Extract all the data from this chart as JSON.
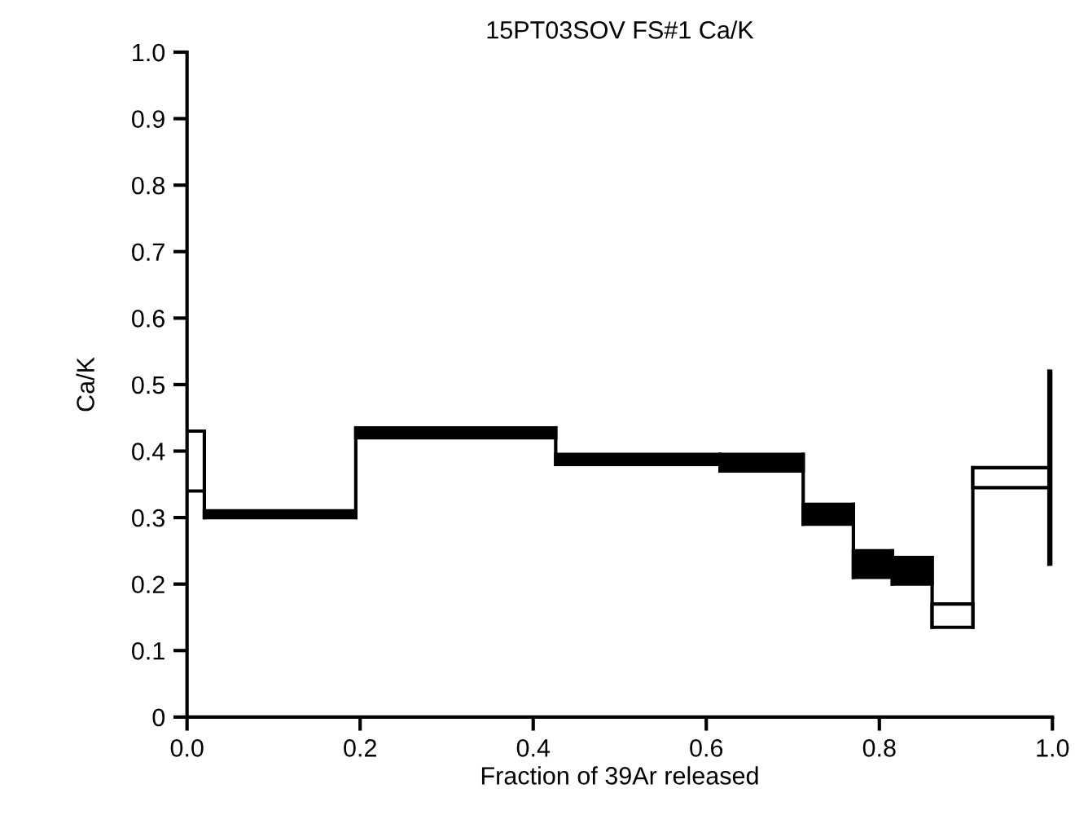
{
  "chart_data": {
    "type": "histogram",
    "title": "15PT03SOV FS#1 Ca/K",
    "xlabel": "Fraction of 39Ar released",
    "ylabel": "Ca/K",
    "bins": [
      0,
      0.02,
      0.195,
      0.426,
      0.616,
      0.712,
      0.77,
      0.815,
      0.861,
      0.908,
      0.996,
      1.0
    ],
    "base": [
      0.34,
      0.3,
      0.42,
      0.38,
      0.37,
      0.29,
      0.21,
      0.2,
      0.135,
      0.345,
      0.23
    ],
    "values": [
      0.09,
      0.01,
      0.015,
      0.015,
      0.025,
      0.03,
      0.04,
      0.04,
      0.035,
      0.03,
      0.29
    ],
    "colors": [
      "#ffffff",
      "#000000",
      "#000000",
      "#000000",
      "#000000",
      "#000000",
      "#000000",
      "#000000",
      "#ffffff",
      "#ffffff",
      "#000000"
    ],
    "xlim": [
      0,
      1.0
    ],
    "ylim": [
      0,
      1.0
    ],
    "xticks": [
      {
        "value": 0,
        "label": "0.0"
      },
      0.2,
      0.4,
      0.6,
      0.8,
      {
        "value": 1,
        "label": "1.0"
      }
    ],
    "yticks": [
      0,
      0.1,
      0.2,
      0.3,
      0.4,
      0.5,
      0.6,
      0.7,
      0.8,
      0.9,
      {
        "value": 1,
        "label": "1.0"
      }
    ],
    "grid": false,
    "legend": false
  }
}
